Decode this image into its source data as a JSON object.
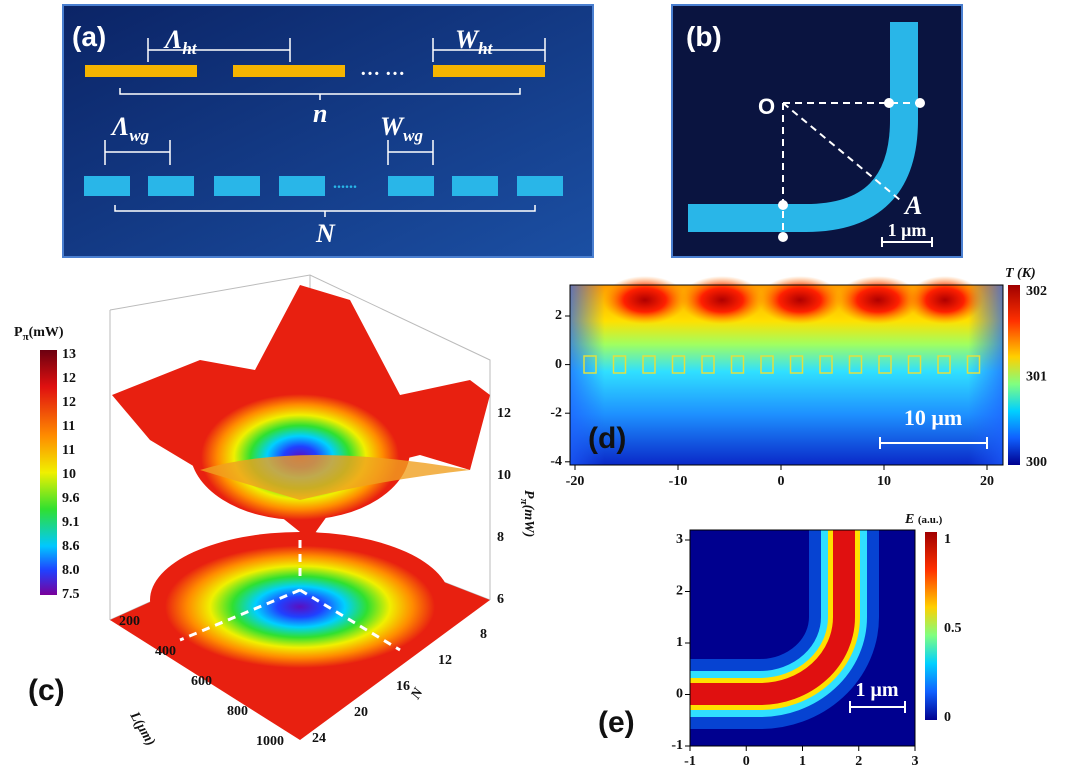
{
  "panels": {
    "a": {
      "label": "(a)",
      "period_heater": {
        "symbol": "Λ",
        "sub": "ht"
      },
      "width_heater": {
        "symbol": "W",
        "sub": "ht"
      },
      "heater_dots": "… …",
      "heater_count": "n",
      "period_wg": {
        "symbol": "Λ",
        "sub": "wg"
      },
      "width_wg": {
        "symbol": "W",
        "sub": "wg"
      },
      "wg_dots": "......",
      "wg_count": "N"
    },
    "b": {
      "label": "(b)",
      "origin": "O",
      "point": "A",
      "scale": "1 μm"
    },
    "c": {
      "label": "(c)",
      "colorbar_title": {
        "symbol": "P",
        "sub": "π",
        "unit": "(mW)"
      },
      "colorbar_ticks": [
        "13",
        "12",
        "12",
        "11",
        "11",
        "10",
        "9.6",
        "9.1",
        "8.6",
        "8.0",
        "7.5"
      ],
      "l_axis_label": "L(μm)",
      "l_ticks": [
        "200",
        "400",
        "600",
        "800",
        "1000"
      ],
      "n_axis_label": "N",
      "n_ticks": [
        "8",
        "12",
        "16",
        "20",
        "24"
      ],
      "z_axis_label": {
        "symbol": "P",
        "sub": "π",
        "unit": "(mW)"
      },
      "z_ticks": [
        "6",
        "8",
        "10",
        "12"
      ]
    },
    "d": {
      "label": "(d)",
      "x_ticks": [
        "-20",
        "-10",
        "0",
        "10",
        "20"
      ],
      "y_ticks": [
        "2",
        "0",
        "-2",
        "-4"
      ],
      "colorbar_title": "T (K)",
      "colorbar_ticks": [
        "302",
        "301",
        "300"
      ],
      "scale": "10 μm"
    },
    "e": {
      "label": "(e)",
      "x_ticks": [
        "-1",
        "0",
        "1",
        "2",
        "3"
      ],
      "y_ticks": [
        "3",
        "2",
        "1",
        "0",
        "-1"
      ],
      "colorbar_title": {
        "symbol": "E",
        "unit": "(a.u.)"
      },
      "colorbar_ticks": [
        "1",
        "0.5",
        "0"
      ],
      "scale": "1 μm"
    }
  }
}
